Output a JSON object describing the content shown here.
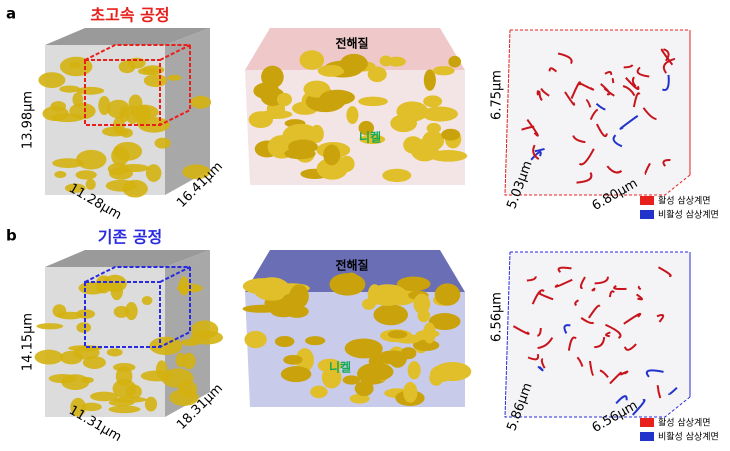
{
  "panels": [
    {
      "label": "a",
      "title": "초고속 공정",
      "title_color": "#e8201c",
      "cube": {
        "height": "13.98μm",
        "depth": "11.28μm",
        "width": "16.41μm"
      },
      "middle": {
        "top": "전해질",
        "center": "니켈"
      },
      "right": {
        "height": "6.75μm",
        "depth": "5.03μm",
        "width": "6.80μm"
      },
      "legend": [
        "활성 삼상계면",
        "비활성 삼상계면"
      ]
    },
    {
      "label": "b",
      "title": "기존 공정",
      "title_color": "#2a2ae0",
      "cube": {
        "height": "14.15μm",
        "depth": "11.31μm",
        "width": "18.31μm"
      },
      "middle": {
        "top": "전해질",
        "center": "니켈"
      },
      "right": {
        "height": "6.56μm",
        "depth": "5.86μm",
        "width": "6.56μm"
      },
      "legend": [
        "활성 삼상계면",
        "비활성 삼상계면"
      ]
    }
  ]
}
